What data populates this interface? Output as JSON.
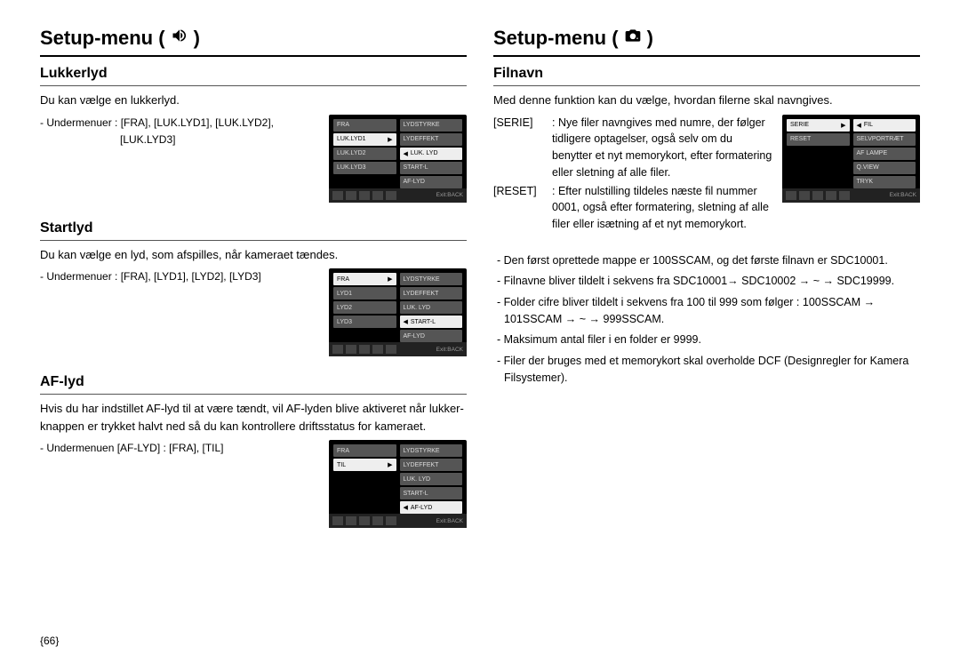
{
  "left": {
    "title": "Setup-menu (",
    "title_close": ")",
    "sections": {
      "lukkerlyd": {
        "heading": "Lukkerlyd",
        "intro": "Du kan vælge en lukkerlyd.",
        "sub1": "- Undermenuer : [FRA], [LUK.LYD1], [LUK.LYD2],",
        "sub2": "[LUK.LYD3]",
        "menu_left": [
          "FRA",
          "LUK.LYD1",
          "LUK.LYD2",
          "LUK.LYD3"
        ],
        "menu_left_selected": 1,
        "menu_right": [
          "LYDSTYRKE",
          "LYDEFFEKT",
          "LUK. LYD",
          "START-L",
          "AF-LYD"
        ],
        "menu_right_selected": 2
      },
      "startlyd": {
        "heading": "Startlyd",
        "intro": "Du kan vælge en lyd, som afspilles, når kameraet tændes.",
        "sub": "- Undermenuer : [FRA], [LYD1], [LYD2], [LYD3]",
        "menu_left": [
          "FRA",
          "LYD1",
          "LYD2",
          "LYD3"
        ],
        "menu_left_selected": 0,
        "menu_right": [
          "LYDSTYRKE",
          "LYDEFFEKT",
          "LUK. LYD",
          "START-L",
          "AF-LYD"
        ],
        "menu_right_selected": 3
      },
      "aflyd": {
        "heading": "AF-lyd",
        "intro": "Hvis du har indstillet AF-lyd til at være tændt, vil AF-lyden blive aktiveret når lukker-knappen er trykket halvt ned så du kan kontrollere driftsstatus for kameraet.",
        "sub": "- Undermenuen [AF-LYD] : [FRA], [TIL]",
        "menu_left": [
          "FRA",
          "TIL"
        ],
        "menu_left_selected": 1,
        "menu_right": [
          "LYDSTYRKE",
          "LYDEFFEKT",
          "LUK. LYD",
          "START-L",
          "AF-LYD"
        ],
        "menu_right_selected": 4
      }
    }
  },
  "right": {
    "title": "Setup-menu (",
    "title_close": ")",
    "section": {
      "heading": "Filnavn",
      "intro": "Med denne funktion kan du vælge, hvordan filerne skal navngives.",
      "defs": [
        {
          "label": "[SERIE]",
          "text": ": Nye filer navngives med numre, der følger tidligere optagelser, også selv om du benytter et nyt memorykort, efter formatering eller sletning af alle filer."
        },
        {
          "label": "[RESET]",
          "text": ": Efter nulstilling tildeles næste fil nummer 0001, også efter formatering, sletning af alle filer eller isætning af et nyt memorykort."
        }
      ],
      "menu_left": [
        "SERIE",
        "RESET"
      ],
      "menu_left_selected": 0,
      "menu_right": [
        "FIL",
        "SELVPORTRÆT",
        "AF LAMPE",
        "Q.VIEW",
        "TRYK"
      ],
      "menu_right_selected": 0,
      "notes": [
        "- Den først oprettede mappe er 100SSCAM, og det første filnavn er SDC10001.",
        "- Filnavne bliver tildelt i sekvens fra SDC10001→ SDC10002 → ~ → SDC19999.",
        "- Folder cifre bliver tildelt i sekvens fra 100 til 999 som følger : 100SSCAM → 101SSCAM → ~ → 999SSCAM.",
        "- Maksimum antal filer i en folder er 9999.",
        "- Filer der bruges med et memorykort skal overholde DCF (Designregler for Kamera Filsystemer)."
      ]
    }
  },
  "footer_exit": "Exit:BACK",
  "page_number": "{66}",
  "colors": {
    "screenshot_bg": "#000000",
    "menu_item_bg": "#555555",
    "menu_item_sel_bg": "#eeeeee",
    "text_color": "#000000"
  }
}
